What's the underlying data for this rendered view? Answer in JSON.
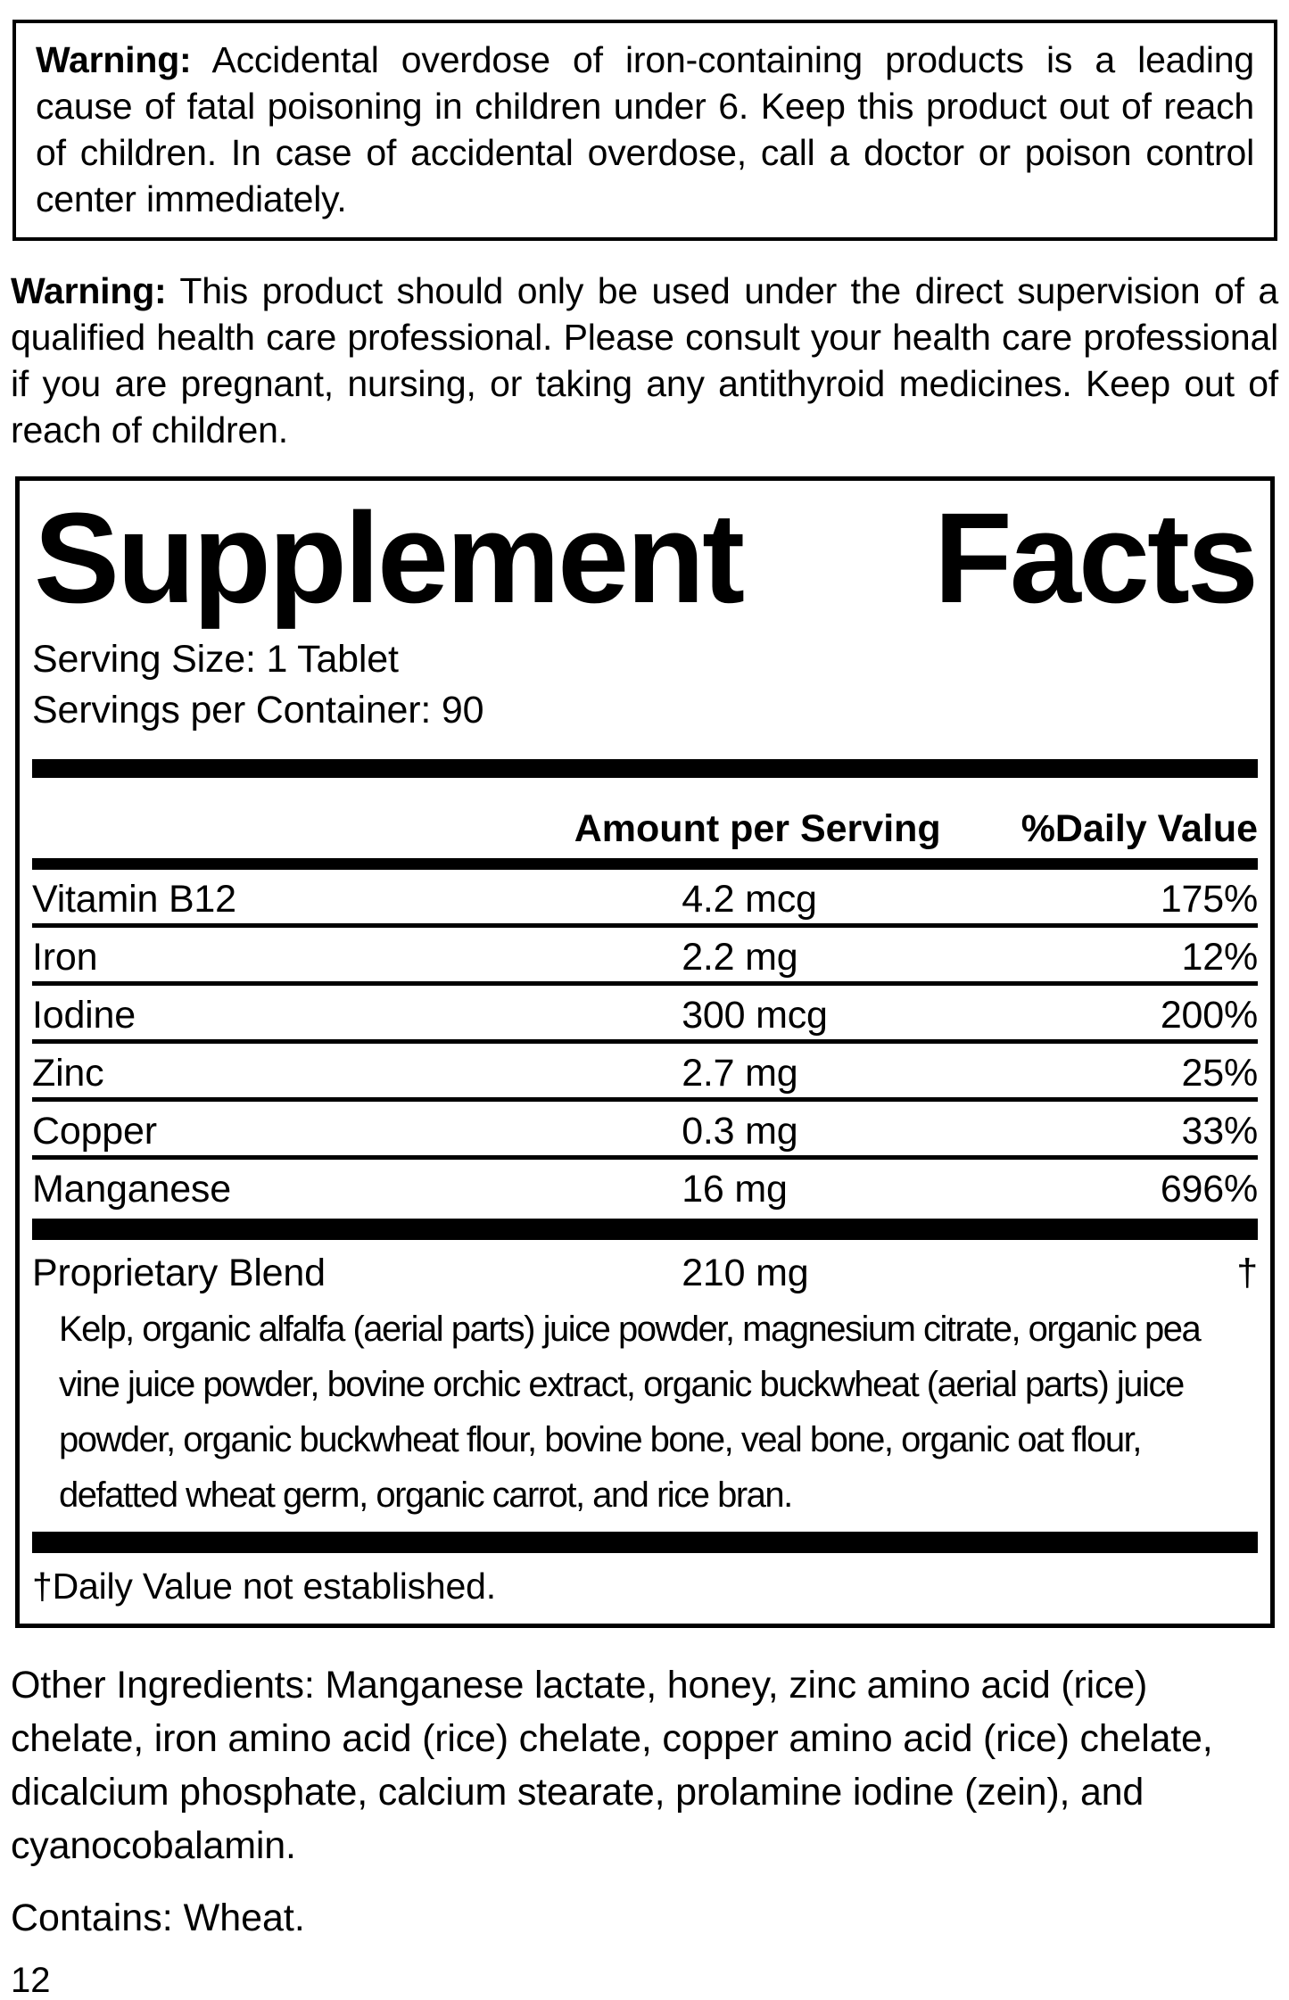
{
  "warning_box": {
    "label": "Warning:",
    "text": " Accidental overdose of iron-containing products is a leading cause of fatal poisoning in children under 6. Keep this product out of reach of children. In case of accidental overdose, call a doctor or poison control center immediately."
  },
  "warning_second": {
    "label": "Warning:",
    "text": " This product should only be used under the direct supervision of a qualified health care professional. Please consult your health care professional if you are pregnant, nursing, or taking any antithyroid medicines. Keep out of reach of children."
  },
  "panel": {
    "title_word1": "Supplement",
    "title_word2": "Facts",
    "serving_size": "Serving Size: 1 Tablet",
    "servings_per_container": "Servings per Container: 90",
    "column_headers": {
      "amount": "Amount per Serving",
      "daily_value": "%Daily Value"
    },
    "rows": [
      {
        "name": "Vitamin B12",
        "amount": "4.2 mcg",
        "dv": "175%"
      },
      {
        "name": "Iron",
        "amount": "2.2 mg",
        "dv": "12%"
      },
      {
        "name": "Iodine",
        "amount": "300 mcg",
        "dv": "200%"
      },
      {
        "name": "Zinc",
        "amount": "2.7 mg",
        "dv": "25%"
      },
      {
        "name": "Copper",
        "amount": "0.3 mg",
        "dv": "33%"
      },
      {
        "name": "Manganese",
        "amount": "16 mg",
        "dv": "696%"
      }
    ],
    "blend": {
      "name": "Proprietary Blend",
      "amount": "210 mg",
      "dv": "†",
      "description": "Kelp, organic alfalfa (aerial parts) juice powder, magnesium citrate, organic pea vine juice powder, bovine orchic extract, organic buckwheat (aerial parts) juice powder, organic buckwheat flour, bovine bone, veal bone, organic oat flour, defatted wheat germ, organic carrot, and rice bran."
    },
    "footnote": "†Daily Value not established."
  },
  "other_ingredients": "Other Ingredients: Manganese lactate, honey, zinc amino acid (rice) chelate, iron amino acid (rice) chelate, copper amino acid (rice) chelate, dicalcium phosphate, calcium stearate, prolamine iodine (zein), and cyanocobalamin.",
  "contains": "Contains: Wheat.",
  "page_number": "12",
  "colors": {
    "text": "#000000",
    "background": "#ffffff"
  }
}
